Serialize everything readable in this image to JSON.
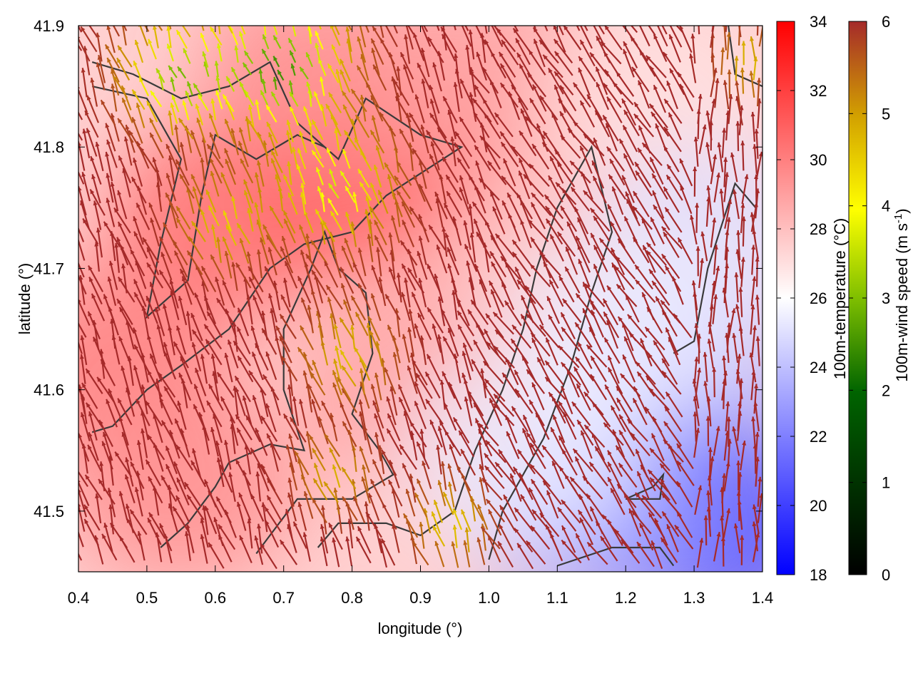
{
  "chart_data": {
    "type": "heatmap",
    "xlabel": "longitude (°)",
    "ylabel": "latitude (°)",
    "xlim": [
      0.4,
      1.4
    ],
    "ylim": [
      41.45,
      41.9
    ],
    "xticks": [
      {
        "v": 0.4,
        "label": "0.4"
      },
      {
        "v": 0.5,
        "label": "0.5"
      },
      {
        "v": 0.6,
        "label": "0.6"
      },
      {
        "v": 0.7,
        "label": "0.7"
      },
      {
        "v": 0.8,
        "label": "0.8"
      },
      {
        "v": 0.9,
        "label": "0.9"
      },
      {
        "v": 1.0,
        "label": "1.0"
      },
      {
        "v": 1.1,
        "label": "1.1"
      },
      {
        "v": 1.2,
        "label": "1.2"
      },
      {
        "v": 1.3,
        "label": "1.3"
      },
      {
        "v": 1.4,
        "label": "1.4"
      }
    ],
    "yticks": [
      {
        "v": 41.5,
        "label": "41.5"
      },
      {
        "v": 41.6,
        "label": "41.6"
      },
      {
        "v": 41.7,
        "label": "41.7"
      },
      {
        "v": 41.8,
        "label": "41.8"
      },
      {
        "v": 41.9,
        "label": "41.9"
      }
    ],
    "grid": false,
    "temperature": {
      "label": "100m-temperature (°C)",
      "range": [
        18,
        34
      ],
      "ticks": [
        {
          "v": 18,
          "label": "18"
        },
        {
          "v": 20,
          "label": "20"
        },
        {
          "v": 22,
          "label": "22"
        },
        {
          "v": 24,
          "label": "24"
        },
        {
          "v": 26,
          "label": "26"
        },
        {
          "v": 28,
          "label": "28"
        },
        {
          "v": 30,
          "label": "30"
        },
        {
          "v": 32,
          "label": "32"
        },
        {
          "v": 34,
          "label": "34"
        }
      ],
      "colormap": [
        "#0000ff",
        "#ffffff",
        "#ff0000"
      ],
      "regions": [
        {
          "lon": 0.62,
          "lat": 41.74,
          "value": 30.5
        },
        {
          "lon": 0.82,
          "lat": 41.78,
          "value": 31
        },
        {
          "lon": 0.45,
          "lat": 41.62,
          "value": 30
        },
        {
          "lon": 0.55,
          "lat": 41.52,
          "value": 29.5
        },
        {
          "lon": 0.9,
          "lat": 41.6,
          "value": 29
        },
        {
          "lon": 0.75,
          "lat": 41.86,
          "value": 29.5
        },
        {
          "lon": 1.0,
          "lat": 41.86,
          "value": 29
        },
        {
          "lon": 1.1,
          "lat": 41.7,
          "value": 28
        },
        {
          "lon": 1.25,
          "lat": 41.84,
          "value": 27
        },
        {
          "lon": 1.32,
          "lat": 41.72,
          "value": 25
        },
        {
          "lon": 1.28,
          "lat": 41.6,
          "value": 23.5
        },
        {
          "lon": 1.25,
          "lat": 41.5,
          "value": 21.5
        },
        {
          "lon": 1.35,
          "lat": 41.48,
          "value": 21
        },
        {
          "lon": 1.15,
          "lat": 41.5,
          "value": 23
        },
        {
          "lon": 1.05,
          "lat": 41.55,
          "value": 25.5
        },
        {
          "lon": 1.2,
          "lat": 41.65,
          "value": 25.5
        }
      ]
    },
    "wind_speed": {
      "label_main": "100m-wind speed (m s",
      "label_sup": "-1",
      "label_end": ")",
      "range": [
        0,
        6
      ],
      "ticks": [
        {
          "v": 0,
          "label": "0"
        },
        {
          "v": 1,
          "label": "1"
        },
        {
          "v": 2,
          "label": "2"
        },
        {
          "v": 3,
          "label": "3"
        },
        {
          "v": 4,
          "label": "4"
        },
        {
          "v": 5,
          "label": "5"
        },
        {
          "v": 6,
          "label": "6"
        }
      ],
      "colormap": [
        "#000000",
        "#006400",
        "#7fbf00",
        "#ffff00",
        "#d2a000",
        "#a52a2a"
      ]
    },
    "contours": [
      {
        "points": [
          [
            0.42,
            41.87
          ],
          [
            0.48,
            41.86
          ],
          [
            0.55,
            41.84
          ],
          [
            0.62,
            41.85
          ],
          [
            0.68,
            41.87
          ],
          [
            0.72,
            41.82
          ],
          [
            0.78,
            41.79
          ],
          [
            0.82,
            41.84
          ],
          [
            0.9,
            41.81
          ],
          [
            0.96,
            41.8
          ],
          [
            0.85,
            41.76
          ],
          [
            0.8,
            41.73
          ],
          [
            0.73,
            41.72
          ],
          [
            0.68,
            41.7
          ],
          [
            0.62,
            41.65
          ],
          [
            0.55,
            41.62
          ],
          [
            0.5,
            41.6
          ],
          [
            0.45,
            41.57
          ],
          [
            0.42,
            41.565
          ]
        ]
      },
      {
        "points": [
          [
            0.42,
            41.85
          ],
          [
            0.5,
            41.84
          ],
          [
            0.55,
            41.79
          ],
          [
            0.52,
            41.72
          ],
          [
            0.5,
            41.66
          ],
          [
            0.56,
            41.69
          ],
          [
            0.58,
            41.76
          ],
          [
            0.6,
            41.81
          ],
          [
            0.66,
            41.79
          ],
          [
            0.72,
            41.81
          ],
          [
            0.76,
            41.8
          ]
        ]
      },
      {
        "points": [
          [
            0.52,
            41.47
          ],
          [
            0.56,
            41.49
          ],
          [
            0.6,
            41.52
          ],
          [
            0.62,
            41.54
          ],
          [
            0.68,
            41.555
          ],
          [
            0.73,
            41.55
          ],
          [
            0.7,
            41.6
          ],
          [
            0.7,
            41.65
          ],
          [
            0.74,
            41.7
          ],
          [
            0.76,
            41.73
          ],
          [
            0.78,
            41.7
          ],
          [
            0.82,
            41.68
          ],
          [
            0.83,
            41.63
          ],
          [
            0.8,
            41.58
          ],
          [
            0.84,
            41.55
          ],
          [
            0.86,
            41.53
          ],
          [
            0.8,
            41.51
          ],
          [
            0.72,
            41.51
          ],
          [
            0.68,
            41.48
          ],
          [
            0.66,
            41.465
          ]
        ]
      },
      {
        "points": [
          [
            0.75,
            41.47
          ],
          [
            0.78,
            41.49
          ],
          [
            0.85,
            41.49
          ],
          [
            0.9,
            41.48
          ],
          [
            0.95,
            41.5
          ],
          [
            0.98,
            41.55
          ],
          [
            1.02,
            41.6
          ],
          [
            1.05,
            41.65
          ],
          [
            1.07,
            41.7
          ],
          [
            1.1,
            41.75
          ],
          [
            1.15,
            41.8
          ],
          [
            1.18,
            41.73
          ],
          [
            1.15,
            41.68
          ],
          [
            1.12,
            41.62
          ],
          [
            1.08,
            41.56
          ],
          [
            1.02,
            41.5
          ],
          [
            1.0,
            41.46
          ]
        ]
      },
      {
        "points": [
          [
            1.1,
            41.455
          ],
          [
            1.18,
            41.47
          ],
          [
            1.25,
            41.47
          ],
          [
            1.27,
            41.455
          ]
        ]
      },
      {
        "points": [
          [
            1.2,
            41.51
          ],
          [
            1.25,
            41.51
          ],
          [
            1.255,
            41.53
          ],
          [
            1.24,
            41.52
          ],
          [
            1.2,
            41.51
          ]
        ]
      },
      {
        "points": [
          [
            1.27,
            41.63
          ],
          [
            1.3,
            41.64
          ],
          [
            1.32,
            41.7
          ],
          [
            1.36,
            41.77
          ],
          [
            1.39,
            41.75
          ]
        ]
      },
      {
        "points": [
          [
            1.35,
            41.9
          ],
          [
            1.36,
            41.86
          ],
          [
            1.4,
            41.85
          ]
        ]
      }
    ]
  }
}
